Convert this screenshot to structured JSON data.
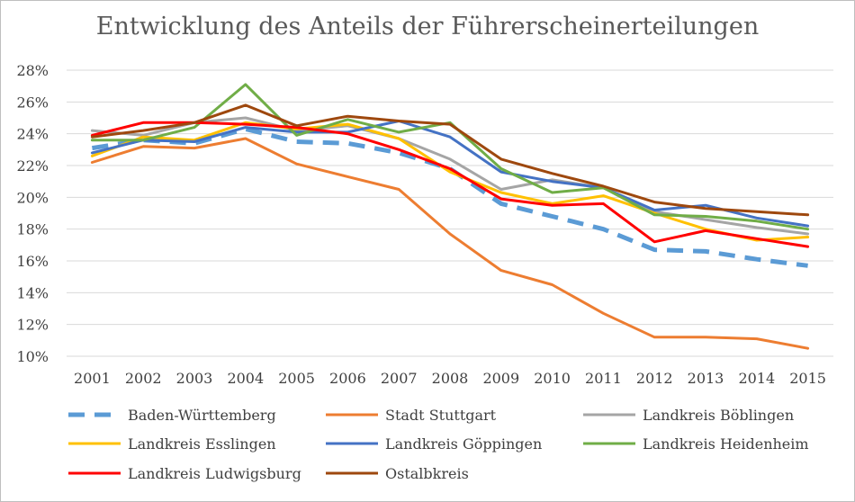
{
  "chart_data": {
    "type": "line",
    "title": "Entwicklung des Anteils der Führerscheinerteilungen",
    "categories": [
      "2001",
      "2002",
      "2003",
      "2004",
      "2005",
      "2006",
      "2007",
      "2008",
      "2009",
      "2010",
      "2011",
      "2012",
      "2013",
      "2014",
      "2015"
    ],
    "ylim": [
      0.1,
      0.28
    ],
    "yticks": [
      0.1,
      0.12,
      0.14,
      0.16,
      0.18,
      0.2,
      0.22,
      0.24,
      0.26,
      0.28
    ],
    "ytick_labels": [
      "10%",
      "12%",
      "14%",
      "16%",
      "18%",
      "20%",
      "22%",
      "24%",
      "26%",
      "28%"
    ],
    "grid": true,
    "legend_position": "bottom",
    "series": [
      {
        "name": "Baden-Württemberg",
        "color": "#5b9bd5",
        "dashed": true,
        "values": [
          0.231,
          0.236,
          0.234,
          0.243,
          0.235,
          0.234,
          0.228,
          0.218,
          0.196,
          0.188,
          0.18,
          0.167,
          0.166,
          0.161,
          0.157
        ]
      },
      {
        "name": "Stadt Stuttgart",
        "color": "#ed7d31",
        "dashed": false,
        "values": [
          0.222,
          0.232,
          0.231,
          0.237,
          0.221,
          0.213,
          0.205,
          0.177,
          0.154,
          0.145,
          0.127,
          0.112,
          0.112,
          0.111,
          0.105
        ]
      },
      {
        "name": "Landkreis Böblingen",
        "color": "#a5a5a5",
        "dashed": false,
        "values": [
          0.242,
          0.239,
          0.247,
          0.25,
          0.242,
          0.245,
          0.237,
          0.224,
          0.205,
          0.211,
          0.206,
          0.191,
          0.186,
          0.181,
          0.177
        ]
      },
      {
        "name": "Landkreis Esslingen",
        "color": "#ffc000",
        "dashed": false,
        "values": [
          0.226,
          0.238,
          0.236,
          0.247,
          0.243,
          0.246,
          0.237,
          0.216,
          0.203,
          0.196,
          0.201,
          0.19,
          0.18,
          0.173,
          0.175
        ]
      },
      {
        "name": "Landkreis Göppingen",
        "color": "#4472c4",
        "dashed": false,
        "values": [
          0.228,
          0.236,
          0.235,
          0.244,
          0.241,
          0.241,
          0.248,
          0.238,
          0.216,
          0.21,
          0.206,
          0.192,
          0.195,
          0.187,
          0.182
        ]
      },
      {
        "name": "Landkreis Heidenheim",
        "color": "#70ad47",
        "dashed": false,
        "values": [
          0.236,
          0.236,
          0.244,
          0.271,
          0.239,
          0.249,
          0.241,
          0.247,
          0.218,
          0.203,
          0.206,
          0.189,
          0.188,
          0.185,
          0.18
        ]
      },
      {
        "name": "Landkreis Ludwigsburg",
        "color": "#ff0000",
        "dashed": false,
        "values": [
          0.239,
          0.247,
          0.247,
          0.246,
          0.244,
          0.24,
          0.23,
          0.218,
          0.199,
          0.195,
          0.196,
          0.172,
          0.179,
          0.174,
          0.169
        ]
      },
      {
        "name": "Ostalbkreis",
        "color": "#9e480e",
        "dashed": false,
        "values": [
          0.238,
          0.242,
          0.247,
          0.258,
          0.245,
          0.251,
          0.248,
          0.246,
          0.224,
          0.215,
          0.207,
          0.197,
          0.193,
          0.191,
          0.189
        ]
      }
    ]
  },
  "colors": {
    "grid": "#d9d9d9",
    "axis_text": "#404040",
    "title": "#595959"
  }
}
